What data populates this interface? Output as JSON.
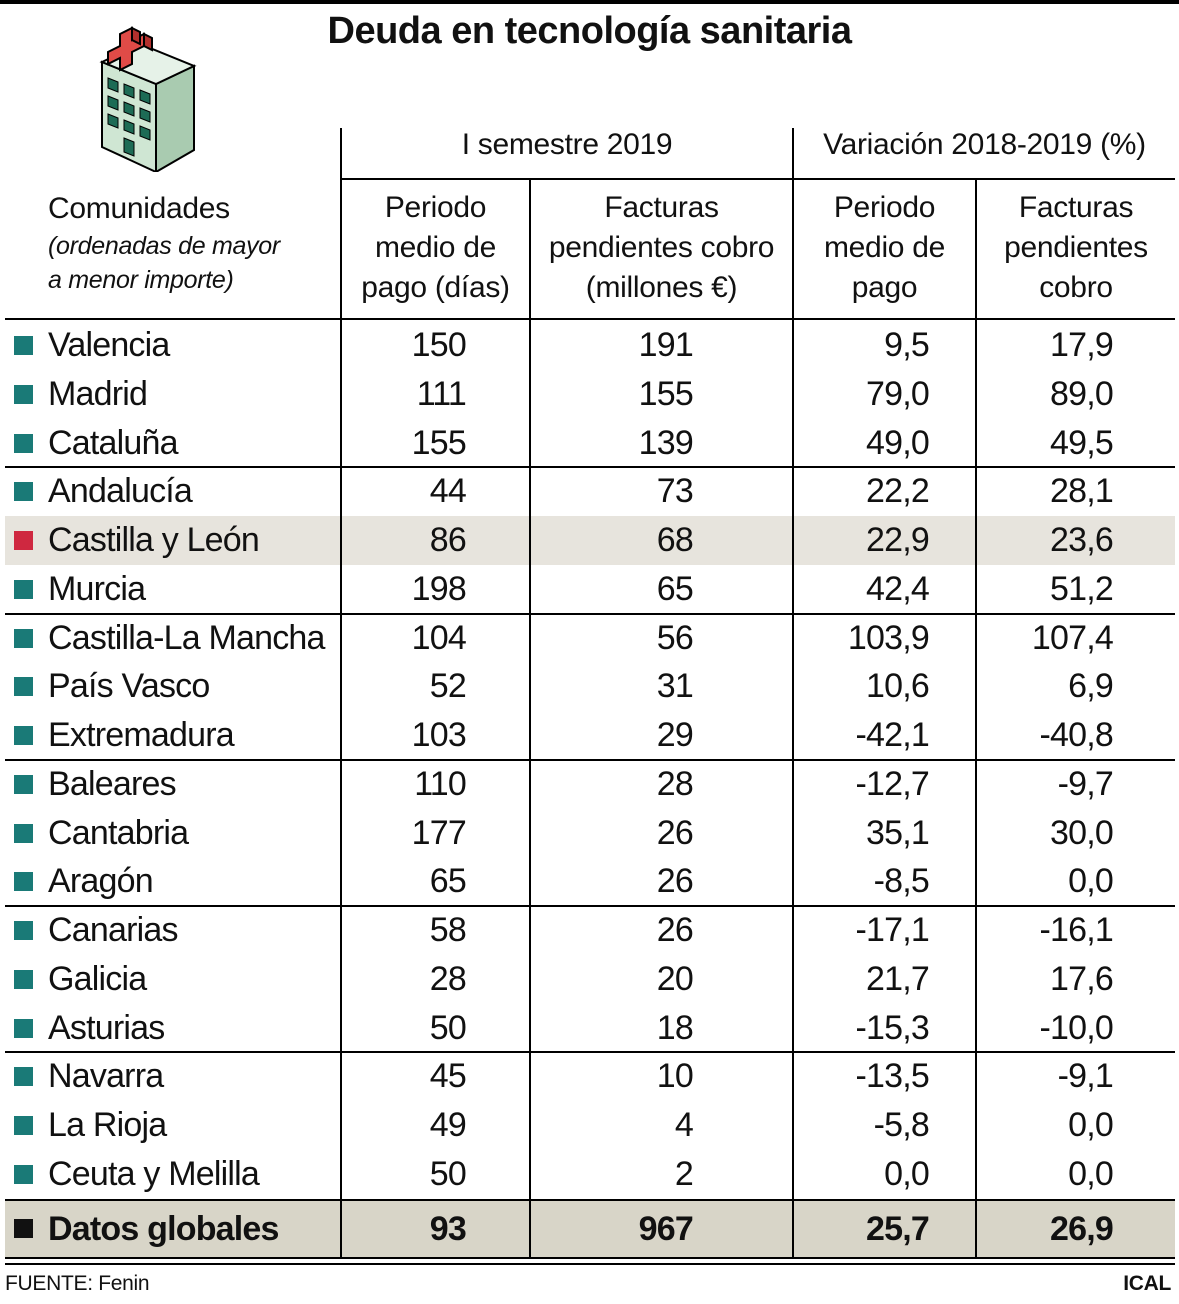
{
  "title": "Deuda en tecnología sanitaria",
  "header": {
    "group1": "I semestre 2019",
    "group2": "Variación 2018-2019 (%)",
    "communities_label": "Comunidades",
    "communities_note_1": "(ordenadas de mayor",
    "communities_note_2": "a menor importe)",
    "col1": [
      "Periodo",
      "medio de",
      "pago (días)"
    ],
    "col2": [
      "Facturas",
      "pendientes cobro",
      "(millones €)"
    ],
    "col3": [
      "Periodo",
      "medio de",
      "pago"
    ],
    "col4": [
      "Facturas",
      "pendientes",
      "cobro"
    ]
  },
  "colors": {
    "marker": "#1a7a77",
    "highlight_marker": "#cf2840",
    "highlight_row": "#e7e4dd",
    "total_row": "#d8d5c8"
  },
  "chart_data": {
    "type": "table",
    "title": "Deuda en tecnología sanitaria",
    "columns": [
      "Comunidades",
      "Periodo medio de pago (días)",
      "Facturas pendientes cobro (millones €)",
      "Variación Periodo medio de pago (%)",
      "Variación Facturas pendientes cobro (%)"
    ],
    "rows": [
      {
        "name": "Valencia",
        "pmp": "150",
        "facturas": "191",
        "var_pmp": "9,5",
        "var_facturas": "17,9"
      },
      {
        "name": "Madrid",
        "pmp": "111",
        "facturas": "155",
        "var_pmp": "79,0",
        "var_facturas": "89,0"
      },
      {
        "name": "Cataluña",
        "pmp": "155",
        "facturas": "139",
        "var_pmp": "49,0",
        "var_facturas": "49,5"
      },
      {
        "name": "Andalucía",
        "pmp": "44",
        "facturas": "73",
        "var_pmp": "22,2",
        "var_facturas": "28,1"
      },
      {
        "name": "Castilla y León",
        "pmp": "86",
        "facturas": "68",
        "var_pmp": "22,9",
        "var_facturas": "23,6",
        "highlight": true
      },
      {
        "name": "Murcia",
        "pmp": "198",
        "facturas": "65",
        "var_pmp": "42,4",
        "var_facturas": "51,2"
      },
      {
        "name": "Castilla-La Mancha",
        "pmp": "104",
        "facturas": "56",
        "var_pmp": "103,9",
        "var_facturas": "107,4"
      },
      {
        "name": "País Vasco",
        "pmp": "52",
        "facturas": "31",
        "var_pmp": "10,6",
        "var_facturas": "6,9"
      },
      {
        "name": "Extremadura",
        "pmp": "103",
        "facturas": "29",
        "var_pmp": "-42,1",
        "var_facturas": "-40,8"
      },
      {
        "name": "Baleares",
        "pmp": "110",
        "facturas": "28",
        "var_pmp": "-12,7",
        "var_facturas": "-9,7"
      },
      {
        "name": "Cantabria",
        "pmp": "177",
        "facturas": "26",
        "var_pmp": "35,1",
        "var_facturas": "30,0"
      },
      {
        "name": "Aragón",
        "pmp": "65",
        "facturas": "26",
        "var_pmp": "-8,5",
        "var_facturas": "0,0"
      },
      {
        "name": "Canarias",
        "pmp": "58",
        "facturas": "26",
        "var_pmp": "-17,1",
        "var_facturas": "-16,1"
      },
      {
        "name": "Galicia",
        "pmp": "28",
        "facturas": "20",
        "var_pmp": "21,7",
        "var_facturas": "17,6"
      },
      {
        "name": "Asturias",
        "pmp": "50",
        "facturas": "18",
        "var_pmp": "-15,3",
        "var_facturas": "-10,0"
      },
      {
        "name": "Navarra",
        "pmp": "45",
        "facturas": "10",
        "var_pmp": "-13,5",
        "var_facturas": "-9,1"
      },
      {
        "name": "La Rioja",
        "pmp": "49",
        "facturas": "4",
        "var_pmp": "-5,8",
        "var_facturas": "0,0"
      },
      {
        "name": "Ceuta y Melilla",
        "pmp": "50",
        "facturas": "2",
        "var_pmp": "0,0",
        "var_facturas": "0,0"
      }
    ],
    "total": {
      "name": "Datos globales",
      "pmp": "93",
      "facturas": "967",
      "var_pmp": "25,7",
      "var_facturas": "26,9"
    }
  },
  "footer": {
    "source": "FUENTE: Fenin",
    "brand": "ICAL"
  },
  "icon": {
    "name": "hospital-icon"
  }
}
